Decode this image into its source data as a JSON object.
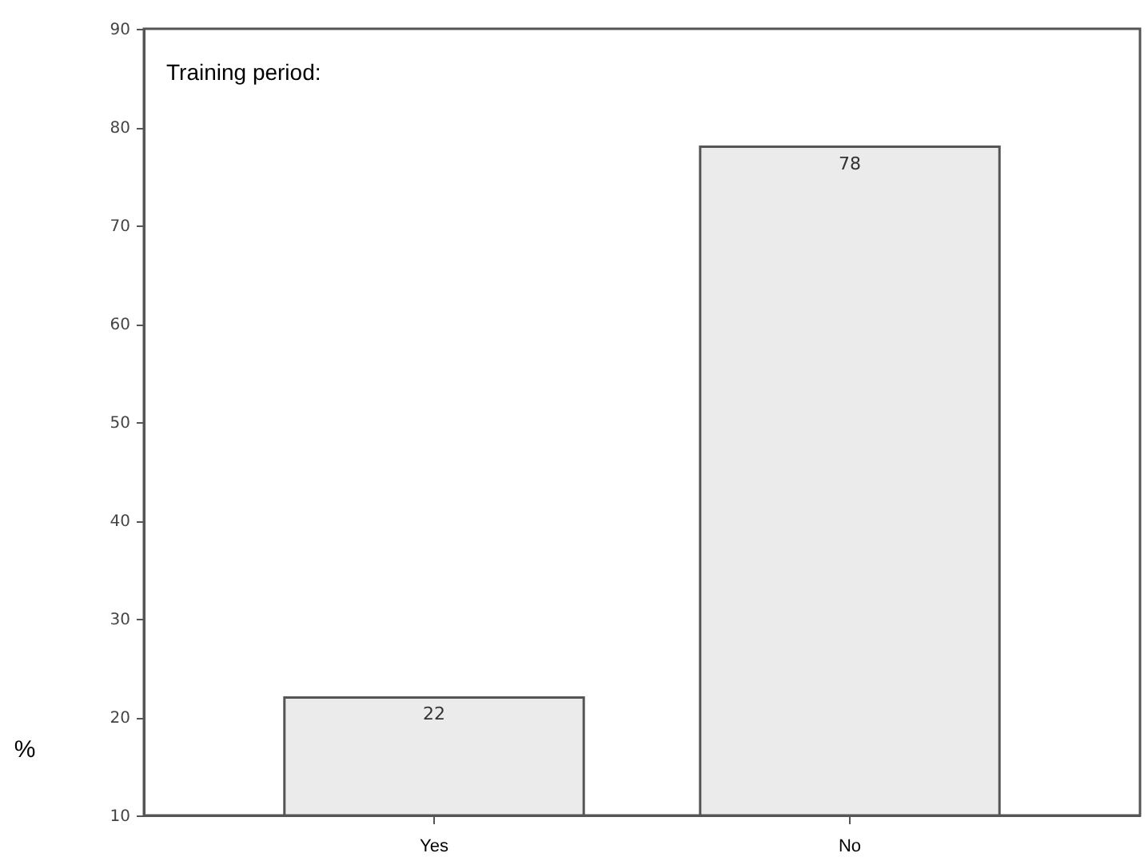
{
  "chart_data": {
    "type": "bar",
    "title": "Training period:",
    "ylabel": "%",
    "categories": [
      "Yes",
      "No"
    ],
    "values": [
      22,
      78
    ],
    "color": "#ebebeb",
    "ylim": [
      10,
      90
    ],
    "yticks": [
      10,
      20,
      30,
      40,
      50,
      60,
      70,
      80,
      90
    ],
    "grid": false,
    "data_labels": true
  }
}
